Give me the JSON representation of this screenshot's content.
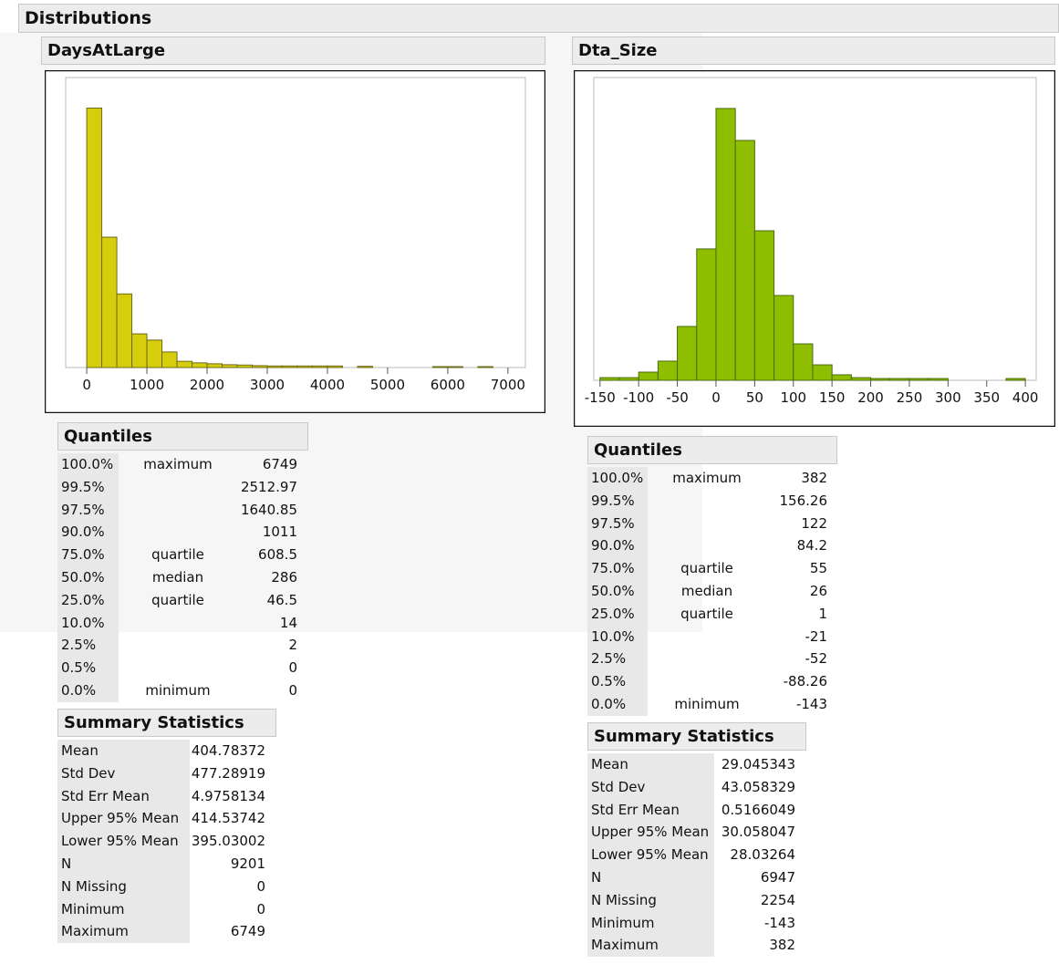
{
  "header": {
    "title": "Distributions"
  },
  "chart_data": [
    {
      "type": "histogram",
      "title": "DaysAtLarge",
      "color": "#d6cd0c",
      "edge_color": "#6e6a1c",
      "bins": [
        0,
        250,
        500,
        750,
        1000,
        1250,
        1500,
        1750,
        2000,
        2250,
        2500,
        2750,
        3000,
        3250,
        3500,
        3750,
        4000,
        4250,
        4500,
        4750,
        5000,
        5250,
        5500,
        5750,
        6000,
        6250,
        6500,
        6750
      ],
      "values": [
        4160,
        2090,
        1180,
        540,
        440,
        250,
        100,
        75,
        60,
        45,
        40,
        30,
        25,
        25,
        25,
        25,
        25,
        0,
        20,
        0,
        0,
        0,
        0,
        15,
        15,
        0,
        15
      ],
      "xlim": [
        -350,
        7290
      ],
      "xticks": [
        0,
        1000,
        2000,
        3000,
        4000,
        5000,
        6000,
        7000
      ],
      "ylim": [
        0,
        4650
      ]
    },
    {
      "type": "histogram",
      "title": "Dta_Size",
      "color": "#8fbe00",
      "edge_color": "#4a6b10",
      "bins": [
        -150,
        -125,
        -100,
        -75,
        -50,
        -25,
        0,
        25,
        50,
        75,
        100,
        125,
        150,
        175,
        200,
        225,
        250,
        275,
        300,
        325,
        350,
        375,
        400
      ],
      "values": [
        18,
        18,
        55,
        129,
        362,
        883,
        1827,
        1612,
        1005,
        570,
        245,
        104,
        37,
        18,
        12,
        12,
        12,
        12,
        0,
        0,
        0,
        12
      ],
      "xlim": [
        -158,
        414
      ],
      "xticks": [
        -150,
        -100,
        -50,
        0,
        50,
        100,
        150,
        200,
        250,
        300,
        350,
        400
      ],
      "ylim": [
        0,
        2035
      ]
    }
  ],
  "panels": [
    {
      "quantiles": {
        "title": "Quantiles",
        "rows": [
          {
            "p": "100.0%",
            "label": "maximum",
            "v": 6749
          },
          {
            "p": "99.5%",
            "v": 2512.97
          },
          {
            "p": "97.5%",
            "v": 1640.85
          },
          {
            "p": "90.0%",
            "v": 1011
          },
          {
            "p": "75.0%",
            "label": "quartile",
            "v": 608.5
          },
          {
            "p": "50.0%",
            "label": "median",
            "v": 286
          },
          {
            "p": "25.0%",
            "label": "quartile",
            "v": 46.5
          },
          {
            "p": "10.0%",
            "v": 14
          },
          {
            "p": "2.5%",
            "v": 2
          },
          {
            "p": "0.5%",
            "v": 0
          },
          {
            "p": "0.0%",
            "label": "minimum",
            "v": 0
          }
        ]
      },
      "summary": {
        "title": "Summary Statistics",
        "rows": [
          {
            "k": "Mean",
            "v": 404.78372
          },
          {
            "k": "Std Dev",
            "v": 477.28919
          },
          {
            "k": "Std Err Mean",
            "v": 4.9758134
          },
          {
            "k": "Upper 95% Mean",
            "v": 414.53742
          },
          {
            "k": "Lower 95% Mean",
            "v": 395.03002
          },
          {
            "k": "N",
            "v": 9201
          },
          {
            "k": "N Missing",
            "v": 0
          },
          {
            "k": "Minimum",
            "v": 0
          },
          {
            "k": "Maximum",
            "v": 6749
          }
        ]
      }
    },
    {
      "quantiles": {
        "title": "Quantiles",
        "rows": [
          {
            "p": "100.0%",
            "label": "maximum",
            "v": 382
          },
          {
            "p": "99.5%",
            "v": 156.26
          },
          {
            "p": "97.5%",
            "v": 122
          },
          {
            "p": "90.0%",
            "v": 84.2
          },
          {
            "p": "75.0%",
            "label": "quartile",
            "v": 55
          },
          {
            "p": "50.0%",
            "label": "median",
            "v": 26
          },
          {
            "p": "25.0%",
            "label": "quartile",
            "v": 1
          },
          {
            "p": "10.0%",
            "v": -21
          },
          {
            "p": "2.5%",
            "v": -52
          },
          {
            "p": "0.5%",
            "v": -88.26
          },
          {
            "p": "0.0%",
            "label": "minimum",
            "v": -143
          }
        ]
      },
      "summary": {
        "title": "Summary Statistics",
        "rows": [
          {
            "k": "Mean",
            "v": 29.045343
          },
          {
            "k": "Std Dev",
            "v": 43.058329
          },
          {
            "k": "Std Err Mean",
            "v": 0.5166049
          },
          {
            "k": "Upper 95% Mean",
            "v": 30.058047
          },
          {
            "k": "Lower 95% Mean",
            "v": 28.03264
          },
          {
            "k": "N",
            "v": 6947
          },
          {
            "k": "N Missing",
            "v": 2254
          },
          {
            "k": "Minimum",
            "v": -143
          },
          {
            "k": "Maximum",
            "v": 382
          }
        ]
      }
    }
  ]
}
